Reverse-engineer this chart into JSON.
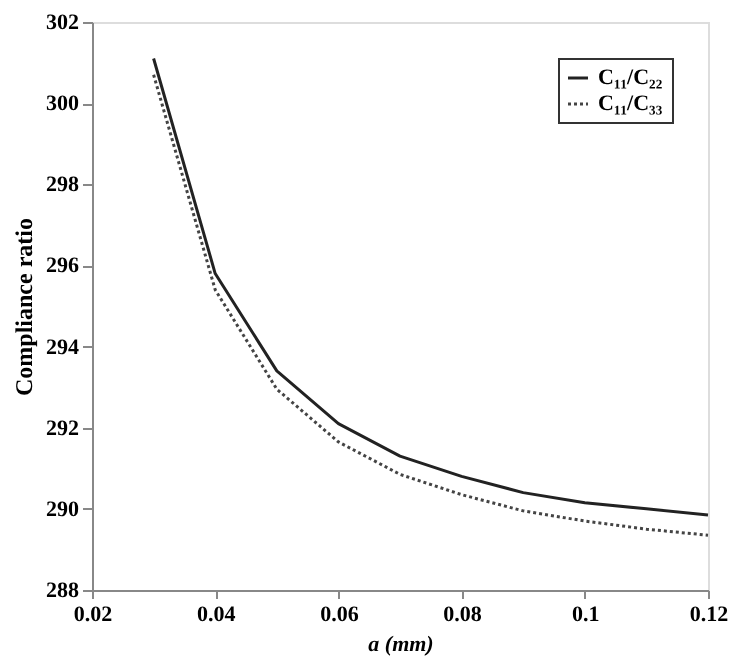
{
  "chart_data": {
    "type": "line",
    "xlabel": "a (mm)",
    "ylabel": "Compliance ratio",
    "x": [
      0.03,
      0.04,
      0.05,
      0.06,
      0.07,
      0.08,
      0.09,
      0.1,
      0.11,
      0.12
    ],
    "series": [
      {
        "name": "C₁₁/C₂₂",
        "color": "#222222",
        "line_style": "solid",
        "values": [
          301.1,
          295.8,
          293.4,
          292.1,
          291.3,
          290.8,
          290.4,
          290.15,
          290.0,
          289.85
        ]
      },
      {
        "name": "C₁₁/C₃₃",
        "color": "#444444",
        "line_style": "dotted",
        "values": [
          300.7,
          295.4,
          292.95,
          291.65,
          290.85,
          290.35,
          289.95,
          289.7,
          289.5,
          289.35
        ]
      }
    ],
    "xlim": [
      0.02,
      0.12
    ],
    "xticks": [
      0.02,
      0.04,
      0.06,
      0.08,
      0.1,
      0.12
    ],
    "ylim": [
      288,
      302
    ],
    "yticks": [
      288,
      290,
      292,
      294,
      296,
      298,
      300,
      302
    ],
    "grid": false,
    "legend": "top right",
    "marker": "none"
  }
}
